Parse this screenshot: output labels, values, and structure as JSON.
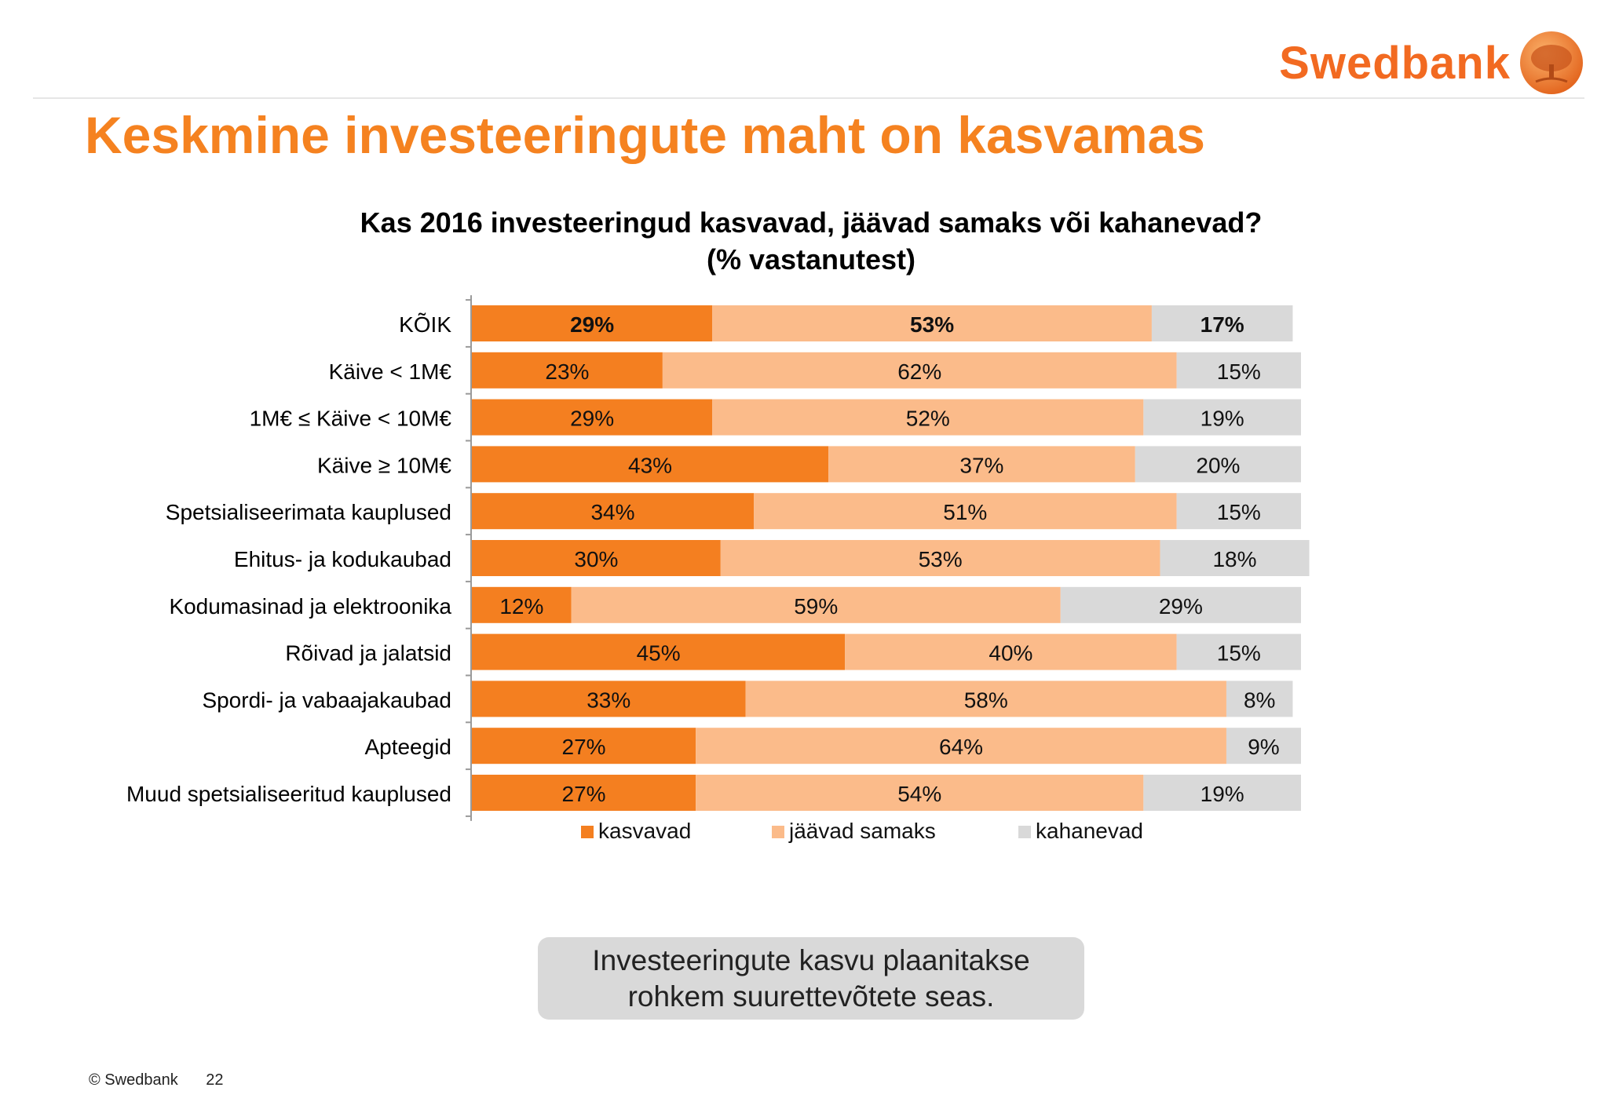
{
  "header": {
    "brand": "Swedbank",
    "title": "Keskmine investeeringute maht on kasvamas"
  },
  "colors": {
    "accent": "#f58220",
    "kasvavad": "#f47f20",
    "jaavad_samaks": "#fbbb8a",
    "kahanevad": "#d9d9d9"
  },
  "chart_data": {
    "type": "bar",
    "orientation": "horizontal",
    "stacked": true,
    "title": "Kas 2016 investeeringud kasvavad, jäävad samaks või kahanevad?",
    "subtitle": "(% vastanutest)",
    "categories": [
      "KÕIK",
      "Käive < 1M€",
      "1M€ ≤ Käive < 10M€",
      "Käive ≥ 10M€",
      "Spetsialiseerimata kauplused",
      "Ehitus- ja kodukaubad",
      "Kodumasinad ja elektroonika",
      "Rõivad ja jalatsid",
      "Spordi- ja vabaajakaubad",
      "Apteegid",
      "Muud spetsialiseeritud kauplused"
    ],
    "series": [
      {
        "name": "kasvavad",
        "color": "#f47f20",
        "values": [
          29,
          23,
          29,
          43,
          34,
          30,
          12,
          45,
          33,
          27,
          27
        ]
      },
      {
        "name": "jäävad samaks",
        "color": "#fbbb8a",
        "values": [
          53,
          62,
          52,
          37,
          51,
          53,
          59,
          40,
          58,
          64,
          54
        ]
      },
      {
        "name": "kahanevad",
        "color": "#d9d9d9",
        "values": [
          17,
          15,
          19,
          20,
          15,
          18,
          29,
          15,
          8,
          9,
          19
        ]
      }
    ],
    "value_suffix": "%",
    "emphasized_category": "KÕIK",
    "legend_position": "bottom",
    "grid": false
  },
  "callout": {
    "text": "Investeeringute kasvu plaanitakse\nrohkem suurettevõtete seas."
  },
  "footer": {
    "copyright": "© Swedbank",
    "page_number": "22"
  }
}
